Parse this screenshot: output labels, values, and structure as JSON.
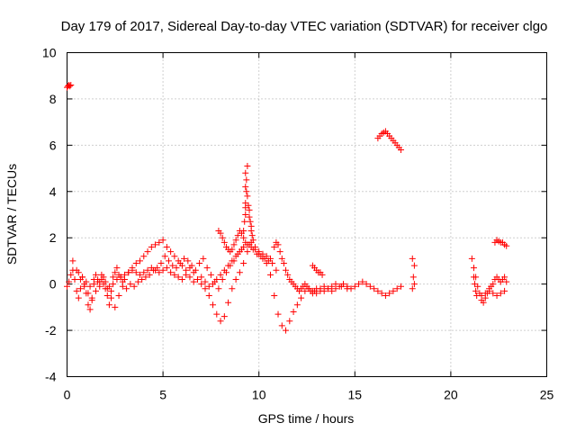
{
  "chart_data": {
    "type": "scatter",
    "title": "Day 179 of 2017, Sidereal Day-to-day VTEC variation (SDTVAR) for receiver clgo",
    "xlabel": "GPS time / hours",
    "ylabel": "SDTVAR / TECUs",
    "xlim": [
      0,
      25
    ],
    "ylim": [
      -4,
      10
    ],
    "xticks": [
      0,
      5,
      10,
      15,
      20,
      25
    ],
    "yticks": [
      -4,
      -2,
      0,
      2,
      4,
      6,
      8,
      10
    ],
    "grid": true,
    "marker": "+",
    "color": "#ff0000",
    "series": [
      {
        "name": "SDTVAR",
        "x": [
          0.0,
          0.05,
          0.1,
          0.15,
          0.2,
          0.0,
          0.1,
          0.2,
          0.3,
          0.4,
          0.5,
          0.6,
          0.7,
          0.8,
          0.9,
          1.0,
          1.1,
          1.2,
          1.3,
          1.4,
          1.5,
          1.6,
          1.7,
          1.8,
          1.9,
          2.0,
          2.1,
          2.2,
          2.3,
          2.4,
          2.5,
          2.6,
          2.7,
          2.8,
          2.9,
          3.0,
          3.2,
          3.4,
          3.6,
          3.8,
          4.0,
          4.2,
          4.4,
          4.6,
          4.8,
          5.0,
          5.2,
          5.4,
          5.6,
          5.8,
          6.0,
          6.2,
          6.4,
          6.6,
          6.8,
          7.0,
          7.2,
          7.4,
          7.6,
          7.8,
          8.0,
          8.2,
          8.4,
          8.6,
          8.8,
          9.0,
          9.2,
          9.4,
          9.6,
          9.8,
          10.0,
          10.2,
          10.4,
          10.6,
          10.8,
          11.0,
          11.2,
          11.4,
          11.6,
          11.8,
          12.0,
          12.2,
          12.4,
          12.6,
          12.8,
          13.0,
          13.2,
          13.4,
          13.6,
          13.8,
          14.0,
          14.2,
          14.4,
          14.6,
          14.8,
          15.0,
          15.2,
          15.4,
          15.6,
          15.8,
          16.0,
          16.2,
          16.4,
          16.6,
          16.8,
          17.0,
          17.2,
          17.4,
          0.3,
          0.5,
          0.7,
          0.9,
          1.1,
          1.3,
          1.5,
          1.7,
          1.9,
          2.1,
          2.3,
          2.5,
          2.7,
          2.9,
          3.1,
          3.3,
          3.5,
          3.7,
          3.9,
          4.1,
          4.3,
          4.5,
          4.7,
          4.9,
          5.1,
          5.3,
          5.5,
          5.7,
          5.9,
          6.1,
          6.3,
          6.5,
          6.7,
          6.9,
          7.1,
          7.3,
          7.5,
          7.7,
          7.9,
          8.1,
          8.3,
          8.5,
          8.7,
          8.9,
          9.1,
          9.3,
          9.5,
          9.7,
          9.9,
          10.1,
          10.3,
          10.5,
          10.7,
          10.9,
          0.4,
          0.6,
          0.8,
          1.0,
          1.2,
          1.4,
          1.6,
          1.8,
          2.0,
          2.2,
          2.4,
          2.6,
          2.8,
          3.0,
          3.2,
          3.4,
          3.6,
          3.8,
          4.0,
          4.2,
          4.4,
          4.6,
          4.8,
          5.0,
          5.2,
          5.4,
          5.6,
          5.8,
          6.0,
          6.2,
          6.4,
          6.6,
          6.8,
          7.0,
          7.2,
          7.4,
          7.6,
          7.8,
          8.0,
          8.2,
          8.4,
          8.6,
          8.8,
          9.0,
          9.2,
          9.4,
          9.6,
          9.8,
          10.0,
          10.2,
          10.4,
          10.6,
          7.9,
          8.0,
          8.1,
          8.2,
          8.3,
          8.4,
          8.5,
          8.6,
          8.7,
          8.8,
          8.9,
          9.0,
          9.1,
          9.2,
          9.2,
          9.25,
          9.3,
          9.3,
          9.35,
          9.35,
          9.4,
          9.4,
          9.45,
          9.5,
          9.5,
          9.55,
          9.6,
          9.6,
          9.65,
          9.7,
          9.3,
          9.3,
          9.3,
          10.8,
          10.9,
          11.0,
          11.1,
          11.2,
          11.3,
          11.4,
          11.5,
          11.6,
          11.7,
          11.8,
          11.9,
          12.0,
          12.1,
          12.2,
          12.3,
          12.4,
          12.5,
          12.6,
          12.7,
          12.8,
          12.9,
          13.0,
          13.2,
          13.4,
          13.6,
          13.8,
          14.0,
          14.3,
          14.6,
          12.8,
          12.9,
          13.0,
          13.1,
          13.2,
          13.3,
          16.2,
          16.3,
          16.4,
          16.5,
          16.6,
          16.7,
          16.8,
          16.9,
          17.0,
          17.1,
          17.2,
          17.3,
          17.4,
          18.0,
          18.1,
          18.05,
          18.1,
          18.0,
          21.1,
          21.2,
          21.3,
          21.4,
          21.5,
          21.6,
          21.7,
          21.8,
          21.9,
          22.0,
          22.1,
          22.2,
          22.3,
          22.4,
          22.5,
          22.6,
          22.7,
          22.8,
          22.9,
          21.6,
          21.8,
          22.0,
          22.2,
          22.4,
          22.6,
          22.8,
          22.3,
          22.4,
          22.5,
          22.6,
          22.7,
          22.8,
          22.9,
          21.2,
          21.25,
          21.3,
          21.35
        ],
        "y": [
          8.5,
          8.55,
          8.6,
          8.55,
          8.6,
          -0.1,
          0.1,
          0.4,
          0.6,
          0.2,
          -0.3,
          -0.6,
          -0.2,
          0.3,
          0.0,
          -0.4,
          -0.9,
          -1.1,
          -0.6,
          0.2,
          0.4,
          0.1,
          -0.1,
          0.2,
          0.3,
          -0.2,
          -0.5,
          -0.9,
          -0.3,
          0.3,
          0.5,
          0.7,
          0.4,
          0.3,
          0.1,
          0.2,
          0.5,
          0.7,
          0.9,
          1.0,
          1.2,
          1.4,
          1.6,
          1.7,
          1.8,
          1.9,
          1.6,
          1.4,
          1.2,
          1.0,
          0.8,
          0.6,
          0.7,
          0.5,
          0.2,
          0.0,
          -0.2,
          -0.5,
          -0.9,
          -1.3,
          -1.6,
          -1.4,
          -0.8,
          -0.2,
          0.2,
          0.5,
          0.9,
          1.4,
          1.8,
          1.6,
          1.3,
          1.1,
          0.9,
          0.4,
          -0.5,
          -1.3,
          -1.8,
          -2.0,
          -1.6,
          -1.2,
          -0.9,
          -0.6,
          -0.3,
          -0.2,
          -0.3,
          -0.4,
          -0.3,
          -0.1,
          -0.2,
          -0.3,
          -0.2,
          -0.1,
          0.0,
          -0.1,
          -0.2,
          -0.1,
          0.0,
          0.1,
          0.0,
          -0.1,
          -0.2,
          -0.3,
          -0.4,
          -0.5,
          -0.4,
          -0.3,
          -0.2,
          -0.1,
          1.0,
          0.6,
          0.2,
          -0.1,
          -0.4,
          -0.7,
          -0.3,
          0.1,
          0.0,
          -0.2,
          -0.6,
          -1.0,
          -0.5,
          -0.1,
          -0.2,
          0.0,
          -0.1,
          0.1,
          0.2,
          0.3,
          0.4,
          0.6,
          0.7,
          0.9,
          1.2,
          1.0,
          0.8,
          0.7,
          0.9,
          1.1,
          1.0,
          0.8,
          0.6,
          0.9,
          1.1,
          0.7,
          0.4,
          0.1,
          -0.2,
          0.2,
          0.5,
          0.8,
          1.0,
          1.3,
          1.5,
          1.8,
          1.7,
          1.5,
          1.3,
          1.2,
          1.1,
          1.0,
          0.9,
          0.6,
          0.2,
          0.5,
          0.3,
          0.1,
          -0.1,
          0.0,
          0.2,
          0.4,
          0.1,
          -0.1,
          0.0,
          0.2,
          0.3,
          0.4,
          0.5,
          0.6,
          0.5,
          0.4,
          0.5,
          0.6,
          0.7,
          0.6,
          0.5,
          0.6,
          0.7,
          0.5,
          0.4,
          0.3,
          0.2,
          0.4,
          0.3,
          0.1,
          0.2,
          0.3,
          0.1,
          -0.1,
          0.0,
          0.2,
          0.4,
          0.6,
          0.8,
          1.0,
          1.2,
          1.4,
          1.6,
          1.7,
          1.6,
          1.5,
          1.4,
          1.3,
          1.2,
          1.1,
          2.3,
          2.2,
          2.0,
          1.8,
          1.6,
          1.5,
          1.4,
          1.5,
          1.7,
          1.9,
          2.1,
          2.3,
          2.2,
          2.0,
          2.3,
          2.7,
          3.0,
          3.5,
          4.0,
          4.5,
          5.1,
          3.8,
          3.4,
          3.2,
          2.9,
          2.7,
          2.5,
          2.3,
          2.1,
          1.9,
          4.2,
          4.8,
          3.3,
          1.6,
          1.8,
          1.7,
          1.4,
          1.1,
          0.9,
          0.6,
          0.4,
          0.2,
          0.1,
          0.0,
          -0.1,
          -0.2,
          -0.3,
          -0.2,
          -0.1,
          0.0,
          -0.1,
          -0.2,
          -0.3,
          -0.4,
          -0.3,
          -0.2,
          -0.2,
          -0.3,
          -0.2,
          -0.1,
          0.0,
          -0.1,
          -0.2,
          0.8,
          0.7,
          0.6,
          0.5,
          0.5,
          0.4,
          6.3,
          6.4,
          6.5,
          6.55,
          6.6,
          6.5,
          6.4,
          6.3,
          6.2,
          6.1,
          6.0,
          5.9,
          5.8,
          1.1,
          0.8,
          0.3,
          0.0,
          -0.2,
          1.1,
          0.7,
          0.3,
          -0.1,
          -0.4,
          -0.7,
          -0.8,
          -0.6,
          -0.4,
          -0.2,
          -0.1,
          0.0,
          0.2,
          0.3,
          0.2,
          0.1,
          0.2,
          0.3,
          0.1,
          -0.5,
          -0.4,
          -0.3,
          -0.4,
          -0.5,
          -0.4,
          -0.3,
          1.8,
          1.9,
          1.85,
          1.8,
          1.8,
          1.7,
          1.65,
          0.3,
          0.0,
          -0.3,
          -0.5
        ]
      }
    ]
  }
}
